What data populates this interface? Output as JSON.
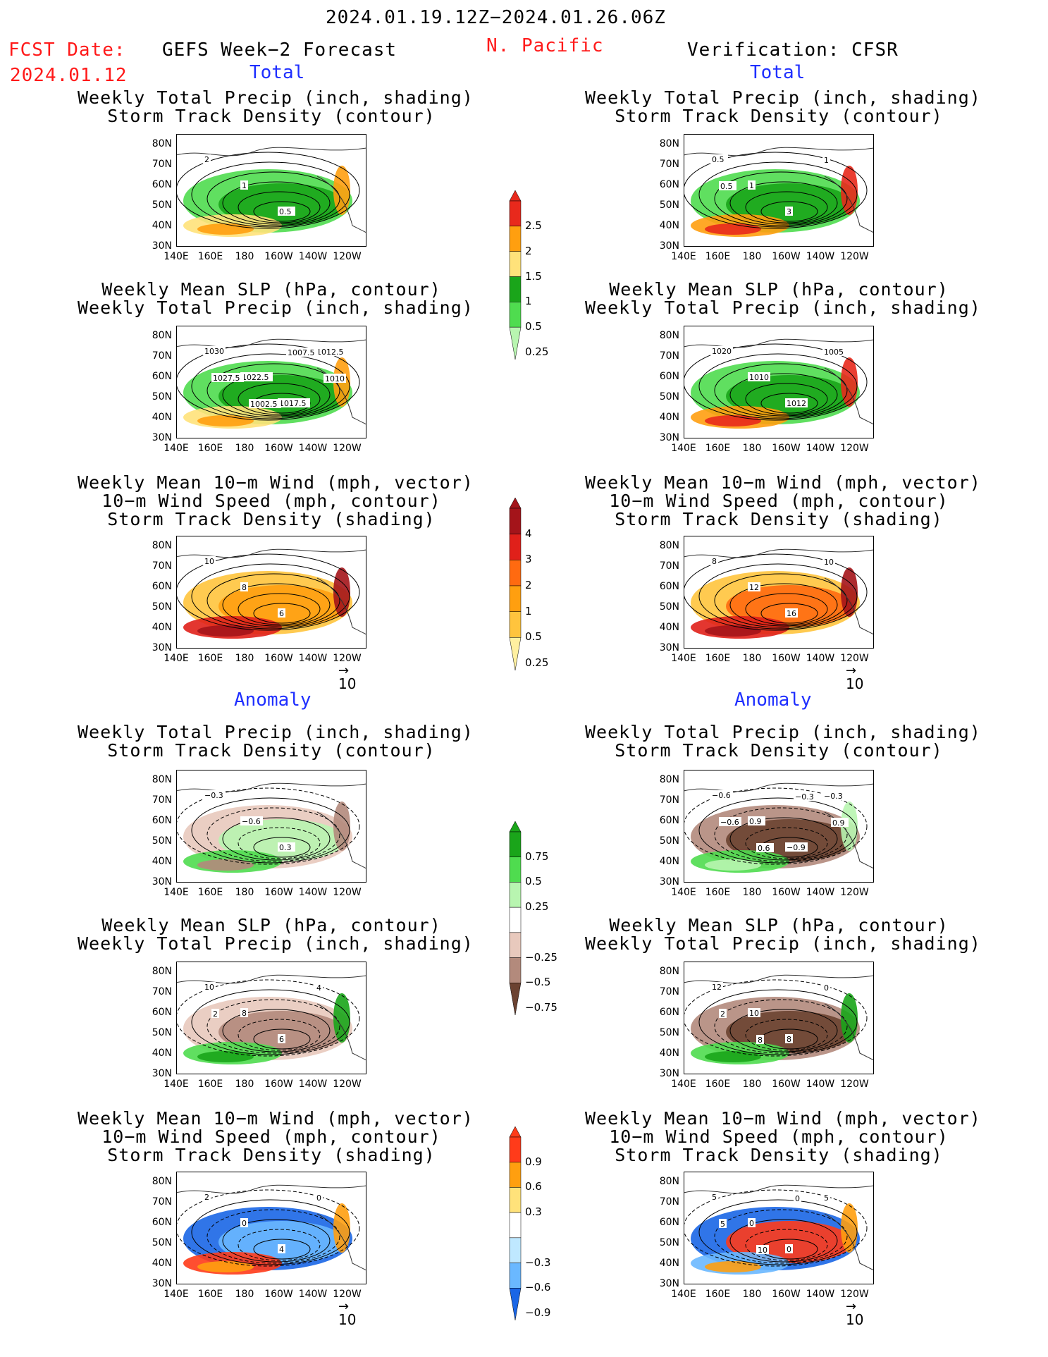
{
  "header": {
    "period": "2024.01.19.12Z−2024.01.26.06Z",
    "fcst_label": "FCST Date:",
    "fcst_date": "2024.01.12",
    "left_title": "GEFS Week−2 Forecast",
    "region": "N. Pacific",
    "right_title": "Verification: CFSR"
  },
  "sections": {
    "total": "Total",
    "anomaly": "Anomaly"
  },
  "titles": {
    "precip_std": [
      "Weekly Total Precip (inch, shading)",
      "Storm Track Density (contour)"
    ],
    "slp_precip": [
      "Weekly Mean SLP (hPa, contour)",
      "Weekly Total Precip (inch, shading)"
    ],
    "wind_std": [
      "Weekly Mean 10−m Wind (mph, vector)",
      "10−m Wind Speed (mph, contour)",
      "Storm Track Density (shading)"
    ]
  },
  "axes": {
    "lat_ticks": [
      "80N",
      "70N",
      "60N",
      "50N",
      "40N",
      "30N"
    ],
    "lon_ticks": [
      "140E",
      "160E",
      "180",
      "160W",
      "140W",
      "120W"
    ]
  },
  "vector_ref": "10",
  "colorbars": {
    "precip_total": {
      "labels": [
        "2.5",
        "2",
        "1.5",
        "1",
        "0.5",
        "0.25"
      ],
      "colors": [
        "#e8291c",
        "#ff9f0f",
        "#ffe27a",
        "#1aa51a",
        "#4fdc4f",
        "#b8f5b0"
      ]
    },
    "std_total": {
      "labels": [
        "4",
        "3",
        "2",
        "1",
        "0.5",
        "0.25"
      ],
      "colors": [
        "#a4141a",
        "#e0201a",
        "#ff6a10",
        "#ff9f0f",
        "#ffc43d",
        "#fff0a0"
      ]
    },
    "precip_anom": {
      "labels": [
        "0.75",
        "0.5",
        "0.25",
        "−0.25",
        "−0.5",
        "−0.75"
      ],
      "colors": [
        "#1aa51a",
        "#4fdc4f",
        "#b8f5b0",
        "#e8c9bd",
        "#b38a7c",
        "#6b4231"
      ]
    },
    "std_anom": {
      "labels": [
        "0.9",
        "0.6",
        "0.3",
        "−0.3",
        "−0.6",
        "−0.9"
      ],
      "colors": [
        "#ff3b1a",
        "#ff9f0f",
        "#ffe27a",
        "#bfe8ff",
        "#6ab8ff",
        "#1a66e6"
      ]
    }
  },
  "panels": {
    "l1": {
      "labels": [
        "2",
        "1",
        "0.5"
      ]
    },
    "r1": {
      "labels": [
        "0.5",
        "1",
        "3",
        "1",
        "0.5"
      ]
    },
    "l2": {
      "labels": [
        "1030",
        "1022.5",
        "1017.5",
        "1012.5",
        "1027.5",
        "1002.5",
        "1007.5",
        "1010"
      ]
    },
    "r2": {
      "labels": [
        "1020",
        "1010",
        "1012",
        "1005"
      ]
    },
    "l3": {
      "labels": [
        "10",
        "8",
        "6"
      ]
    },
    "r3": {
      "labels": [
        "8",
        "12",
        "16",
        "10"
      ]
    },
    "l4": {
      "labels": [
        "−0.3",
        "−0.6",
        "0.3"
      ]
    },
    "r4": {
      "labels": [
        "−0.6",
        "0.9",
        "−0.9",
        "−0.3",
        "−0.6",
        "0.6",
        "−0.3",
        "0.9"
      ]
    },
    "l5": {
      "labels": [
        "10",
        "8",
        "6",
        "4",
        "2"
      ]
    },
    "r5": {
      "labels": [
        "12",
        "10",
        "8",
        "0",
        "2",
        "8"
      ]
    },
    "l6": {
      "labels": [
        "2",
        "0",
        "4",
        "0"
      ]
    },
    "r6": {
      "labels": [
        "5",
        "0",
        "0",
        "5",
        "5",
        "10",
        "0"
      ]
    }
  }
}
